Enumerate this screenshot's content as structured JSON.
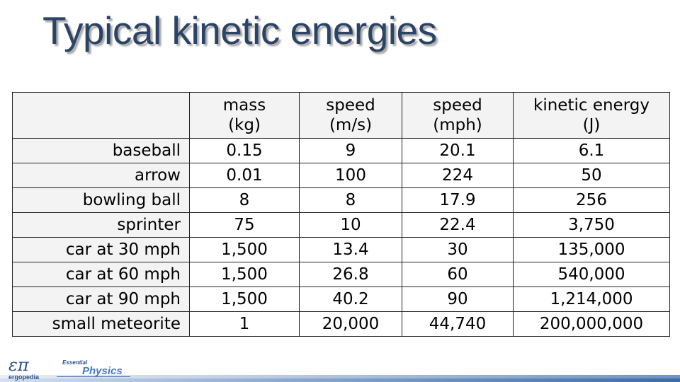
{
  "slide": {
    "title": "Typical kinetic energies"
  },
  "table": {
    "columns": [
      {
        "line1": "mass",
        "line2": "(kg)"
      },
      {
        "line1": "speed",
        "line2": "(m/s)"
      },
      {
        "line1": "speed",
        "line2": "(mph)"
      },
      {
        "line1": "kinetic energy",
        "line2": "(J)"
      }
    ],
    "rows": [
      {
        "label": "baseball",
        "mass": "0.15",
        "speed_ms": "9",
        "speed_mph": "20.1",
        "energy": "6.1"
      },
      {
        "label": "arrow",
        "mass": "0.01",
        "speed_ms": "100",
        "speed_mph": "224",
        "energy": "50"
      },
      {
        "label": "bowling ball",
        "mass": "8",
        "speed_ms": "8",
        "speed_mph": "17.9",
        "energy": "256"
      },
      {
        "label": "sprinter",
        "mass": "75",
        "speed_ms": "10",
        "speed_mph": "22.4",
        "energy": "3,750"
      },
      {
        "label": "car at 30 mph",
        "mass": "1,500",
        "speed_ms": "13.4",
        "speed_mph": "30",
        "energy": "135,000"
      },
      {
        "label": "car at 60 mph",
        "mass": "1,500",
        "speed_ms": "26.8",
        "speed_mph": "60",
        "energy": "540,000"
      },
      {
        "label": "car at 90 mph",
        "mass": "1,500",
        "speed_ms": "40.2",
        "speed_mph": "90",
        "energy": "1,214,000"
      },
      {
        "label": "small meteorite",
        "mass": "1",
        "speed_ms": "20,000",
        "speed_mph": "44,740",
        "energy": "200,000,000"
      }
    ]
  },
  "footer": {
    "logo_glyph": "επ",
    "logo_word": "ergopedia",
    "brand_small": "Essential",
    "brand_big": "Physics"
  }
}
